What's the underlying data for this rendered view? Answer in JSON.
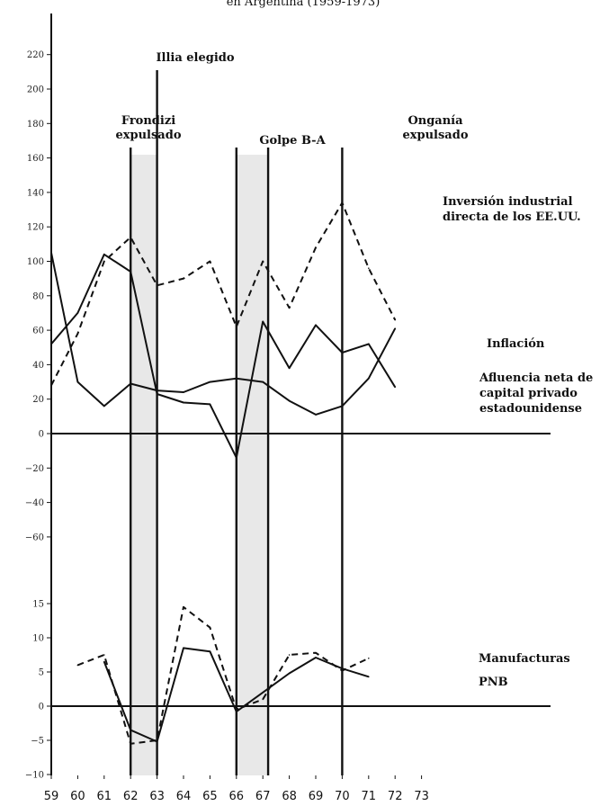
{
  "chart_data": {
    "type": "line",
    "title": "en Argentina (1959-1973)",
    "x_ticks": [
      "59",
      "60",
      "61",
      "62",
      "63",
      "64",
      "65",
      "66",
      "67",
      "68",
      "69",
      "70",
      "71",
      "72",
      "73"
    ],
    "shaded_periods": [
      [
        62,
        63
      ],
      [
        66,
        67.2
      ]
    ],
    "events": [
      {
        "x": 62,
        "label_lines": [
          "Frondizi",
          "expulsado"
        ]
      },
      {
        "x": 63,
        "label_lines": [
          "Illia elegido"
        ]
      },
      {
        "x": 66,
        "label_lines": [
          "Golpe B-A"
        ]
      },
      {
        "x": 67.2,
        "label_lines": []
      },
      {
        "x": 70,
        "label_lines": [
          "Onganía",
          "expulsado"
        ]
      }
    ],
    "panels": [
      {
        "name": "upper",
        "ylim": [
          -60,
          220
        ],
        "yticks": [
          {
            "v": 220,
            "label": "220"
          },
          {
            "v": 200,
            "label": "200"
          },
          {
            "v": 180,
            "label": "180"
          },
          {
            "v": 160,
            "label": "160"
          },
          {
            "v": 140,
            "label": "140"
          },
          {
            "v": 120,
            "label": "120"
          },
          {
            "v": 100,
            "label": "100"
          },
          {
            "v": 80,
            "label": "80"
          },
          {
            "v": 60,
            "label": "60"
          },
          {
            "v": 40,
            "label": "40"
          },
          {
            "v": 20,
            "label": "20"
          },
          {
            "v": 0,
            "label": "0"
          },
          {
            "v": -20,
            "label": "−20"
          },
          {
            "v": -40,
            "label": "−40"
          },
          {
            "v": -60,
            "label": "−60"
          }
        ],
        "series": [
          {
            "name": "Inversión industrial directa de los EE.UU.",
            "label_lines": [
              "Inversión industrial",
              "directa de los EE.UU."
            ],
            "style": "dashed",
            "points": [
              [
                59,
                28
              ],
              [
                60,
                58
              ],
              [
                61,
                100
              ],
              [
                62,
                114
              ],
              [
                63,
                86
              ],
              [
                64,
                90
              ],
              [
                65,
                100
              ],
              [
                66,
                62
              ],
              [
                67,
                100
              ],
              [
                68,
                73
              ],
              [
                69,
                108
              ],
              [
                70,
                134
              ],
              [
                71,
                96
              ],
              [
                72,
                66
              ]
            ]
          },
          {
            "name": "Inflación",
            "label_lines": [
              "Inflación"
            ],
            "style": "solid",
            "points": [
              [
                59,
                105
              ],
              [
                60,
                30
              ],
              [
                61,
                16
              ],
              [
                62,
                29
              ],
              [
                63,
                25
              ],
              [
                64,
                24
              ],
              [
                65,
                30
              ],
              [
                66,
                32
              ],
              [
                67,
                30
              ],
              [
                68,
                19
              ],
              [
                69,
                11
              ],
              [
                70,
                16
              ],
              [
                71,
                32
              ],
              [
                72,
                61
              ]
            ]
          },
          {
            "name": "Afluencia neta de capital privado estadounidense",
            "label_lines": [
              "Afluencia neta de",
              "capital privado",
              "estadounidense"
            ],
            "style": "solid",
            "points": [
              [
                59,
                52
              ],
              [
                60,
                70
              ],
              [
                61,
                104
              ],
              [
                62,
                94
              ],
              [
                63,
                23
              ],
              [
                64,
                18
              ],
              [
                65,
                17
              ],
              [
                66,
                -14
              ],
              [
                67,
                65
              ],
              [
                68,
                38
              ],
              [
                69,
                63
              ],
              [
                70,
                47
              ],
              [
                71,
                52
              ],
              [
                72,
                27
              ]
            ]
          }
        ]
      },
      {
        "name": "lower",
        "ylim": [
          -10,
          15
        ],
        "yticks": [
          {
            "v": 15,
            "label": "15"
          },
          {
            "v": 10,
            "label": "10"
          },
          {
            "v": 5,
            "label": "5"
          },
          {
            "v": 0,
            "label": "0"
          },
          {
            "v": -5,
            "label": "−5"
          },
          {
            "v": -10,
            "label": "−10"
          }
        ],
        "series": [
          {
            "name": "Manufacturas",
            "label_lines": [
              "Manufacturas"
            ],
            "style": "dashed",
            "points": [
              [
                60,
                6
              ],
              [
                61,
                7.5
              ],
              [
                62,
                -5.5
              ],
              [
                63,
                -5
              ],
              [
                64,
                14.5
              ],
              [
                65,
                11.5
              ],
              [
                66,
                -0.5
              ],
              [
                67,
                1
              ],
              [
                68,
                7.5
              ],
              [
                69,
                7.8
              ],
              [
                70,
                5.2
              ],
              [
                71,
                7
              ]
            ]
          },
          {
            "name": "PNB",
            "label_lines": [
              "PNB"
            ],
            "style": "solid",
            "points": [
              [
                61,
                6.5
              ],
              [
                62,
                -3.5
              ],
              [
                63,
                -5.2
              ],
              [
                64,
                8.5
              ],
              [
                65,
                8
              ],
              [
                66,
                -0.8
              ],
              [
                67,
                2
              ],
              [
                68,
                4.8
              ],
              [
                69,
                7.1
              ],
              [
                70,
                5.5
              ],
              [
                71,
                4.3
              ]
            ]
          }
        ]
      }
    ]
  }
}
